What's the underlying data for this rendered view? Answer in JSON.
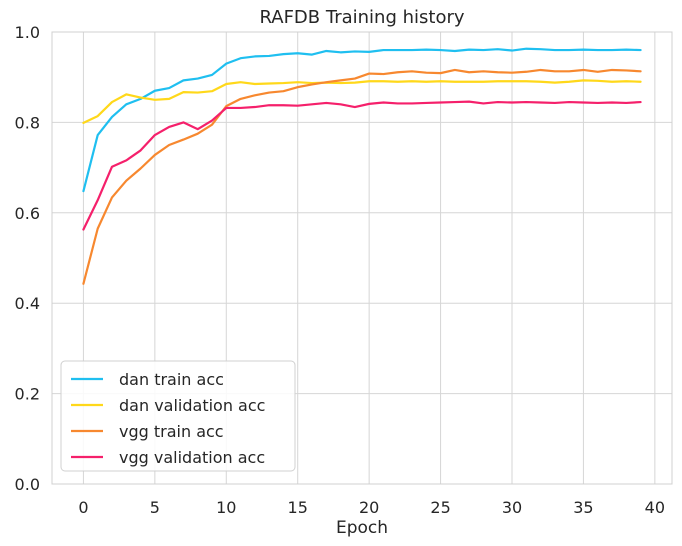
{
  "chart_data": {
    "type": "line",
    "title": "RAFDB Training history",
    "xlabel": "Epoch",
    "ylabel": "",
    "xlim": [
      -2.2,
      41.2
    ],
    "ylim": [
      0.0,
      1.0
    ],
    "xticks": [
      0,
      5,
      10,
      15,
      20,
      25,
      30,
      35,
      40
    ],
    "yticks": [
      0.0,
      0.2,
      0.4,
      0.6,
      0.8,
      1.0
    ],
    "grid": true,
    "legend_position": "lower-left",
    "x": [
      0,
      1,
      2,
      3,
      4,
      5,
      6,
      7,
      8,
      9,
      10,
      11,
      12,
      13,
      14,
      15,
      16,
      17,
      18,
      19,
      20,
      21,
      22,
      23,
      24,
      25,
      26,
      27,
      28,
      29,
      30,
      31,
      32,
      33,
      34,
      35,
      36,
      37,
      38,
      39
    ],
    "series": [
      {
        "name": "dan train acc",
        "color": "#1fbff0",
        "values": [
          0.648,
          0.772,
          0.812,
          0.84,
          0.852,
          0.87,
          0.876,
          0.893,
          0.897,
          0.905,
          0.93,
          0.942,
          0.946,
          0.947,
          0.951,
          0.953,
          0.95,
          0.958,
          0.955,
          0.957,
          0.956,
          0.96,
          0.96,
          0.96,
          0.961,
          0.96,
          0.958,
          0.961,
          0.96,
          0.962,
          0.959,
          0.963,
          0.962,
          0.96,
          0.96,
          0.961,
          0.96,
          0.96,
          0.961,
          0.96
        ]
      },
      {
        "name": "dan validation acc",
        "color": "#ffd81a",
        "values": [
          0.799,
          0.814,
          0.845,
          0.862,
          0.855,
          0.85,
          0.852,
          0.867,
          0.866,
          0.869,
          0.885,
          0.889,
          0.885,
          0.886,
          0.887,
          0.889,
          0.887,
          0.888,
          0.887,
          0.888,
          0.891,
          0.891,
          0.89,
          0.891,
          0.89,
          0.891,
          0.89,
          0.89,
          0.89,
          0.891,
          0.891,
          0.891,
          0.89,
          0.888,
          0.89,
          0.893,
          0.892,
          0.89,
          0.891,
          0.89
        ]
      },
      {
        "name": "vgg train acc",
        "color": "#f7882f",
        "values": [
          0.443,
          0.565,
          0.634,
          0.671,
          0.698,
          0.728,
          0.75,
          0.762,
          0.775,
          0.795,
          0.836,
          0.852,
          0.86,
          0.866,
          0.869,
          0.878,
          0.884,
          0.889,
          0.893,
          0.897,
          0.908,
          0.907,
          0.911,
          0.913,
          0.91,
          0.909,
          0.916,
          0.911,
          0.913,
          0.911,
          0.91,
          0.912,
          0.916,
          0.913,
          0.913,
          0.916,
          0.912,
          0.916,
          0.915,
          0.913
        ]
      },
      {
        "name": "vgg validation acc",
        "color": "#f5206b",
        "values": [
          0.563,
          0.628,
          0.702,
          0.716,
          0.738,
          0.772,
          0.79,
          0.8,
          0.785,
          0.804,
          0.832,
          0.832,
          0.834,
          0.838,
          0.838,
          0.837,
          0.84,
          0.843,
          0.84,
          0.834,
          0.841,
          0.844,
          0.842,
          0.842,
          0.843,
          0.844,
          0.845,
          0.846,
          0.842,
          0.845,
          0.844,
          0.845,
          0.844,
          0.843,
          0.845,
          0.844,
          0.843,
          0.844,
          0.843,
          0.845
        ]
      }
    ]
  }
}
